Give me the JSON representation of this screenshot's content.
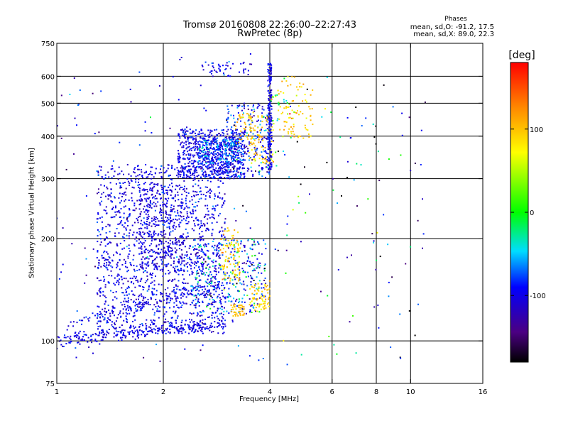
{
  "title": {
    "line1": "Tromsø 20160808 22:26:00–22:27:43",
    "line2": "RwPretec (8p)"
  },
  "stats": {
    "header": "Phases",
    "o_line": "mean, sd,O: -91.2, 17.5",
    "x_line": "mean, sd,X:  89.0, 22.3"
  },
  "chart_data": {
    "type": "scatter",
    "title": "Tromsø 20160808 22:26:00–22:27:43 RwPretec (8p)",
    "xlabel": "Frequency [MHz]",
    "ylabel": "Stationary phase Virtual Height [km]",
    "x_scale": "log",
    "y_scale": "log",
    "xlim": [
      1,
      16
    ],
    "ylim": [
      75,
      750
    ],
    "x_ticks": [
      1,
      2,
      4,
      6,
      8,
      10,
      16
    ],
    "x_tick_labels": [
      "1",
      "2",
      "4",
      "6",
      "8",
      "10",
      "16"
    ],
    "y_ticks": [
      75,
      100,
      200,
      300,
      400,
      500,
      600,
      750
    ],
    "y_tick_labels": [
      "75",
      "100",
      "200",
      "300",
      "400",
      "500",
      "600",
      "750"
    ],
    "x_gridlines": [
      2,
      4,
      6,
      8,
      10
    ],
    "y_gridlines": [
      100,
      200,
      300,
      400,
      500,
      600
    ],
    "grid": true,
    "colorbar": {
      "label": "[deg]",
      "range": [
        -180,
        180
      ],
      "ticks": [
        100,
        0,
        -100
      ],
      "tick_labels": [
        "100",
        "0",
        "-100"
      ]
    },
    "point_groups": [
      {
        "kind": "low-trace",
        "x": [
          1.0,
          3.0
        ],
        "y": [
          100,
          112
        ],
        "n": 240,
        "phase_mean": -100,
        "phase_sd": 10,
        "spread": 0.018
      },
      {
        "kind": "low-trace",
        "x": [
          1.05,
          3.2
        ],
        "y": [
          112,
          150
        ],
        "n": 140,
        "phase_mean": -100,
        "phase_sd": 12,
        "spread": 0.02
      },
      {
        "kind": "region",
        "x": [
          1.3,
          3.0
        ],
        "y": [
          105,
          330
        ],
        "n": 1500,
        "phase_mean": -100,
        "phase_sd": 15
      },
      {
        "kind": "region",
        "x": [
          1.7,
          2.3
        ],
        "y": [
          160,
          290
        ],
        "n": 300,
        "phase_mean": -105,
        "phase_sd": 12
      },
      {
        "kind": "region",
        "x": [
          2.4,
          3.9
        ],
        "y": [
          120,
          200
        ],
        "n": 330,
        "phase_mean": -80,
        "phase_sd": 45
      },
      {
        "kind": "region",
        "x": [
          2.9,
          3.3
        ],
        "y": [
          150,
          215
        ],
        "n": 90,
        "phase_mean": 95,
        "phase_sd": 20
      },
      {
        "kind": "region",
        "x": [
          3.1,
          3.4
        ],
        "y": [
          118,
          128
        ],
        "n": 40,
        "phase_mean": 100,
        "phase_sd": 10
      },
      {
        "kind": "region",
        "x": [
          3.5,
          4.0
        ],
        "y": [
          122,
          150
        ],
        "n": 70,
        "phase_mean": 95,
        "phase_sd": 15
      },
      {
        "kind": "region",
        "x": [
          2.2,
          3.4
        ],
        "y": [
          300,
          420
        ],
        "n": 700,
        "phase_mean": -100,
        "phase_sd": 15
      },
      {
        "kind": "region",
        "x": [
          2.5,
          3.3
        ],
        "y": [
          330,
          390
        ],
        "n": 180,
        "phase_mean": -70,
        "phase_sd": 25
      },
      {
        "kind": "region",
        "x": [
          3.0,
          4.0
        ],
        "y": [
          300,
          500
        ],
        "n": 250,
        "phase_mean": -90,
        "phase_sd": 30
      },
      {
        "kind": "region",
        "x": [
          3.5,
          4.1
        ],
        "y": [
          330,
          460
        ],
        "n": 90,
        "phase_mean": 95,
        "phase_sd": 15
      },
      {
        "kind": "region",
        "x": [
          3.2,
          3.6
        ],
        "y": [
          380,
          470
        ],
        "n": 40,
        "phase_mean": 95,
        "phase_sd": 15
      },
      {
        "kind": "vertical",
        "x": [
          3.95,
          4.05
        ],
        "y": [
          320,
          660
        ],
        "n": 170,
        "phase_mean": -100,
        "phase_sd": 10
      },
      {
        "kind": "region",
        "x": [
          2.5,
          3.6
        ],
        "y": [
          600,
          660
        ],
        "n": 45,
        "phase_mean": -100,
        "phase_sd": 10
      },
      {
        "kind": "region",
        "x": [
          4.2,
          5.3
        ],
        "y": [
          390,
          600
        ],
        "n": 80,
        "phase_mean": 95,
        "phase_sd": 15
      },
      {
        "kind": "region",
        "x": [
          4.0,
          4.7
        ],
        "y": [
          430,
          530
        ],
        "n": 30,
        "phase_mean": 30,
        "phase_sd": 60
      },
      {
        "kind": "scatter",
        "x": [
          4.0,
          11.0
        ],
        "y": [
          85,
          600
        ],
        "n": 110,
        "phase_mean": -90,
        "phase_sd": 80
      },
      {
        "kind": "scatter",
        "x": [
          1.0,
          4.0
        ],
        "y": [
          85,
          700
        ],
        "n": 160,
        "phase_mean": -100,
        "phase_sd": 25
      }
    ]
  }
}
